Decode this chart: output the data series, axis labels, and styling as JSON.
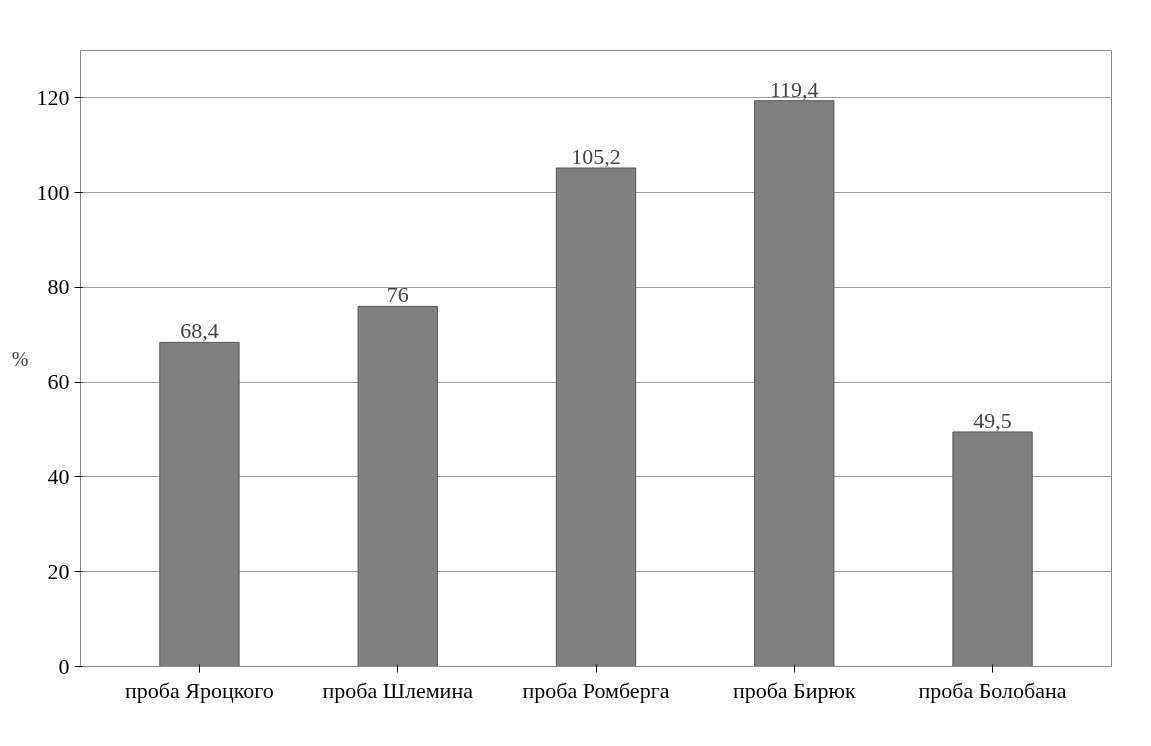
{
  "chart_data": {
    "type": "bar",
    "ylabel": "%",
    "categories": [
      "проба Яроцкого",
      "проба Шлемина",
      "проба Ромберга",
      "проба Бирюк",
      "проба Болобана"
    ],
    "values": [
      68.4,
      76,
      105.2,
      119.4,
      49.5
    ],
    "value_labels": [
      "68,4",
      "76",
      "105,2",
      "119,4",
      "49,5"
    ],
    "color": "#808080",
    "ylim": [
      0,
      130
    ],
    "yticks": [
      0,
      20,
      40,
      60,
      80,
      100,
      120
    ],
    "grid": "y"
  }
}
